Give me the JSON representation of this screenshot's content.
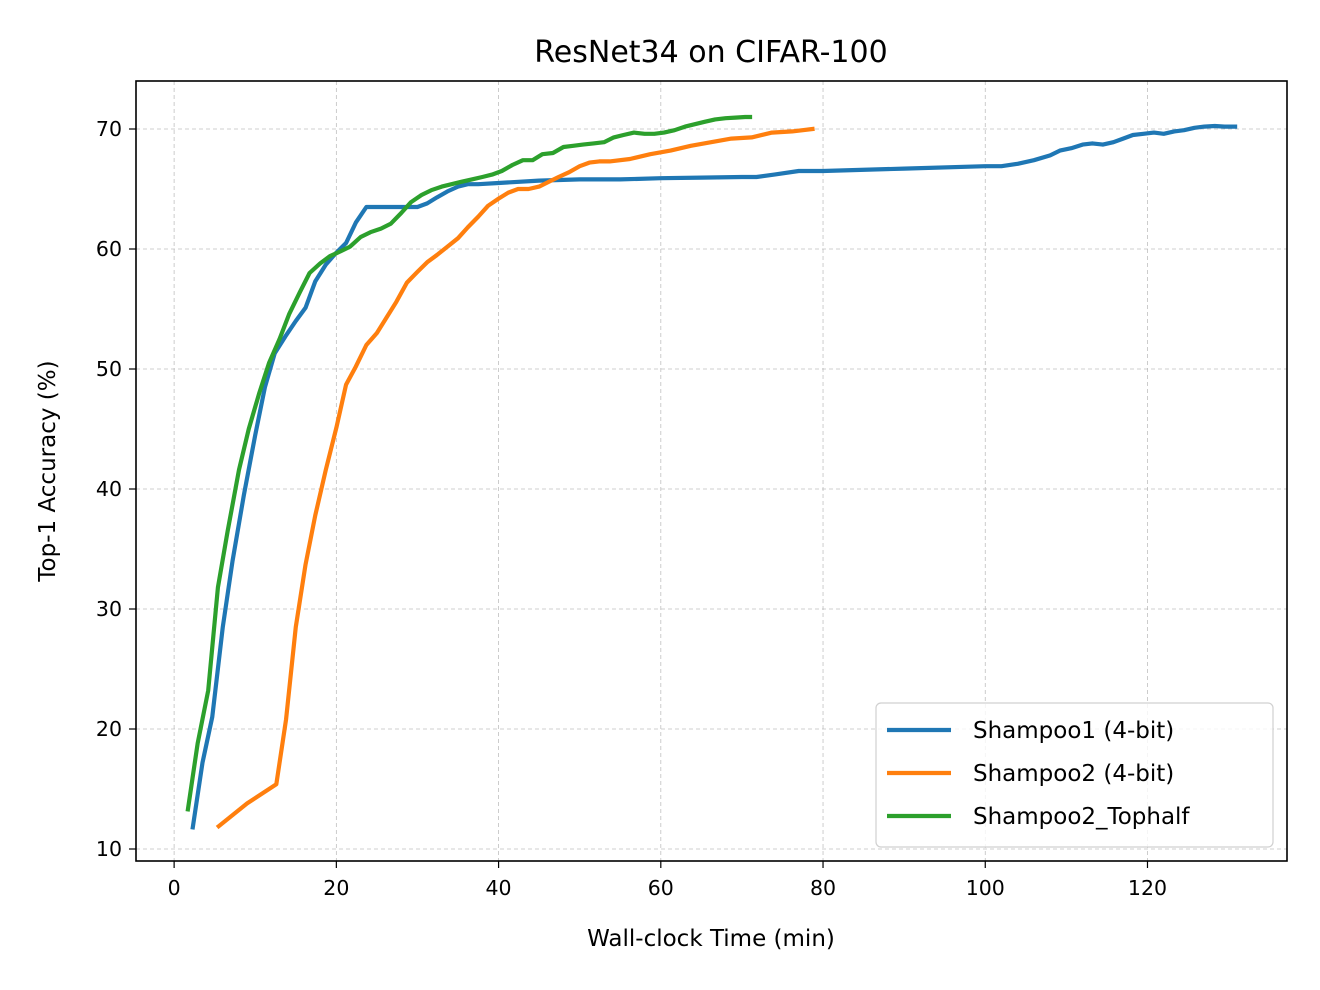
{
  "chart_data": {
    "type": "line",
    "title": "ResNet34 on CIFAR-100",
    "xlabel": "Wall-clock Time (min)",
    "ylabel": "Top-1 Accuracy (%)",
    "xlim": [
      -4.7,
      137.2
    ],
    "ylim": [
      9.0,
      74.0
    ],
    "xticks": [
      0,
      20,
      40,
      60,
      80,
      100,
      120
    ],
    "yticks": [
      10,
      20,
      30,
      40,
      50,
      60,
      70
    ],
    "grid": true,
    "legend_position": "lower right",
    "series": [
      {
        "name": "Shampoo1 (4-bit)",
        "color": "#1f77b4",
        "points": [
          [
            2.3,
            11.8
          ],
          [
            3.5,
            17.2
          ],
          [
            4.7,
            21.0
          ],
          [
            6.0,
            28.5
          ],
          [
            7.2,
            34.0
          ],
          [
            8.6,
            39.5
          ],
          [
            10.0,
            44.5
          ],
          [
            11.2,
            48.5
          ],
          [
            12.4,
            51.3
          ],
          [
            13.7,
            52.7
          ],
          [
            15.0,
            54.0
          ],
          [
            16.2,
            55.1
          ],
          [
            17.4,
            57.3
          ],
          [
            18.7,
            58.7
          ],
          [
            20.0,
            59.7
          ],
          [
            21.2,
            60.5
          ],
          [
            22.4,
            62.2
          ],
          [
            23.7,
            63.5
          ],
          [
            25.0,
            63.5
          ],
          [
            26.2,
            63.5
          ],
          [
            27.4,
            63.5
          ],
          [
            28.7,
            63.5
          ],
          [
            30.0,
            63.5
          ],
          [
            31.2,
            63.8
          ],
          [
            32.4,
            64.3
          ],
          [
            33.7,
            64.8
          ],
          [
            35.0,
            65.2
          ],
          [
            36.2,
            65.4
          ],
          [
            37.5,
            65.4
          ],
          [
            40.0,
            65.5
          ],
          [
            45.0,
            65.7
          ],
          [
            50.0,
            65.8
          ],
          [
            55.0,
            65.8
          ],
          [
            60.0,
            65.9
          ],
          [
            65.0,
            65.95
          ],
          [
            70.0,
            66.0
          ],
          [
            71.8,
            66.0
          ],
          [
            74.0,
            66.2
          ],
          [
            77.0,
            66.5
          ],
          [
            80.0,
            66.5
          ],
          [
            90.0,
            66.7
          ],
          [
            100.0,
            66.9
          ],
          [
            102.0,
            66.9
          ],
          [
            104.0,
            67.1
          ],
          [
            106.0,
            67.4
          ],
          [
            108.0,
            67.8
          ],
          [
            109.2,
            68.2
          ],
          [
            110.6,
            68.4
          ],
          [
            112.0,
            68.7
          ],
          [
            113.2,
            68.8
          ],
          [
            114.5,
            68.7
          ],
          [
            115.8,
            68.9
          ],
          [
            117.0,
            69.2
          ],
          [
            118.2,
            69.5
          ],
          [
            119.5,
            69.6
          ],
          [
            120.8,
            69.7
          ],
          [
            122.0,
            69.6
          ],
          [
            123.3,
            69.8
          ],
          [
            124.5,
            69.9
          ],
          [
            125.8,
            70.1
          ],
          [
            127.0,
            70.2
          ],
          [
            128.3,
            70.25
          ],
          [
            129.5,
            70.2
          ],
          [
            130.8,
            70.2
          ]
        ]
      },
      {
        "name": "Shampoo2 (4-bit)",
        "color": "#ff7f0e",
        "points": [
          [
            5.5,
            11.9
          ],
          [
            9.0,
            13.8
          ],
          [
            12.6,
            15.4
          ],
          [
            13.8,
            20.8
          ],
          [
            15.0,
            28.5
          ],
          [
            16.2,
            33.7
          ],
          [
            17.4,
            37.8
          ],
          [
            18.7,
            41.6
          ],
          [
            20.0,
            45.1
          ],
          [
            21.2,
            48.7
          ],
          [
            22.4,
            50.2
          ],
          [
            23.7,
            52.0
          ],
          [
            25.0,
            53.0
          ],
          [
            26.2,
            54.3
          ],
          [
            27.4,
            55.6
          ],
          [
            28.7,
            57.2
          ],
          [
            30.0,
            58.1
          ],
          [
            31.2,
            58.9
          ],
          [
            32.4,
            59.5
          ],
          [
            33.7,
            60.2
          ],
          [
            35.0,
            60.9
          ],
          [
            36.2,
            61.8
          ],
          [
            37.5,
            62.7
          ],
          [
            38.7,
            63.6
          ],
          [
            40.0,
            64.2
          ],
          [
            41.2,
            64.7
          ],
          [
            42.4,
            65.0
          ],
          [
            43.7,
            65.0
          ],
          [
            45.0,
            65.2
          ],
          [
            46.2,
            65.6
          ],
          [
            47.4,
            66.0
          ],
          [
            48.7,
            66.4
          ],
          [
            50.0,
            66.9
          ],
          [
            51.2,
            67.2
          ],
          [
            52.4,
            67.3
          ],
          [
            53.7,
            67.3
          ],
          [
            56.2,
            67.5
          ],
          [
            58.7,
            67.9
          ],
          [
            61.2,
            68.2
          ],
          [
            63.7,
            68.6
          ],
          [
            66.2,
            68.9
          ],
          [
            68.7,
            69.2
          ],
          [
            71.2,
            69.3
          ],
          [
            73.7,
            69.7
          ],
          [
            76.2,
            69.8
          ],
          [
            78.7,
            70.0
          ]
        ]
      },
      {
        "name": "Shampoo2_Tophalf",
        "color": "#2ca02c",
        "points": [
          [
            1.7,
            13.3
          ],
          [
            2.9,
            18.8
          ],
          [
            4.2,
            23.2
          ],
          [
            5.4,
            31.8
          ],
          [
            6.6,
            36.5
          ],
          [
            8.0,
            41.6
          ],
          [
            9.2,
            45.0
          ],
          [
            10.5,
            48.0
          ],
          [
            11.7,
            50.5
          ],
          [
            13.0,
            52.5
          ],
          [
            14.2,
            54.6
          ],
          [
            15.5,
            56.4
          ],
          [
            16.7,
            58.0
          ],
          [
            18.0,
            58.8
          ],
          [
            19.2,
            59.4
          ],
          [
            20.5,
            59.8
          ],
          [
            21.7,
            60.2
          ],
          [
            23.0,
            61.0
          ],
          [
            24.2,
            61.4
          ],
          [
            25.5,
            61.7
          ],
          [
            26.7,
            62.1
          ],
          [
            28.0,
            63.0
          ],
          [
            29.2,
            63.9
          ],
          [
            30.5,
            64.5
          ],
          [
            31.7,
            64.9
          ],
          [
            33.0,
            65.2
          ],
          [
            34.2,
            65.4
          ],
          [
            35.4,
            65.6
          ],
          [
            36.7,
            65.8
          ],
          [
            38.0,
            66.0
          ],
          [
            39.2,
            66.2
          ],
          [
            40.4,
            66.5
          ],
          [
            41.7,
            67.0
          ],
          [
            43.0,
            67.4
          ],
          [
            44.2,
            67.4
          ],
          [
            45.4,
            67.9
          ],
          [
            46.7,
            68.0
          ],
          [
            48.0,
            68.5
          ],
          [
            49.2,
            68.6
          ],
          [
            50.4,
            68.7
          ],
          [
            51.7,
            68.8
          ],
          [
            53.0,
            68.9
          ],
          [
            54.2,
            69.3
          ],
          [
            55.4,
            69.5
          ],
          [
            56.7,
            69.7
          ],
          [
            58.0,
            69.6
          ],
          [
            59.2,
            69.6
          ],
          [
            60.4,
            69.7
          ],
          [
            61.7,
            69.9
          ],
          [
            63.0,
            70.2
          ],
          [
            64.2,
            70.4
          ],
          [
            65.4,
            70.6
          ],
          [
            66.7,
            70.8
          ],
          [
            68.0,
            70.9
          ],
          [
            69.2,
            70.95
          ],
          [
            70.4,
            71.0
          ],
          [
            71.0,
            71.0
          ]
        ]
      }
    ]
  }
}
